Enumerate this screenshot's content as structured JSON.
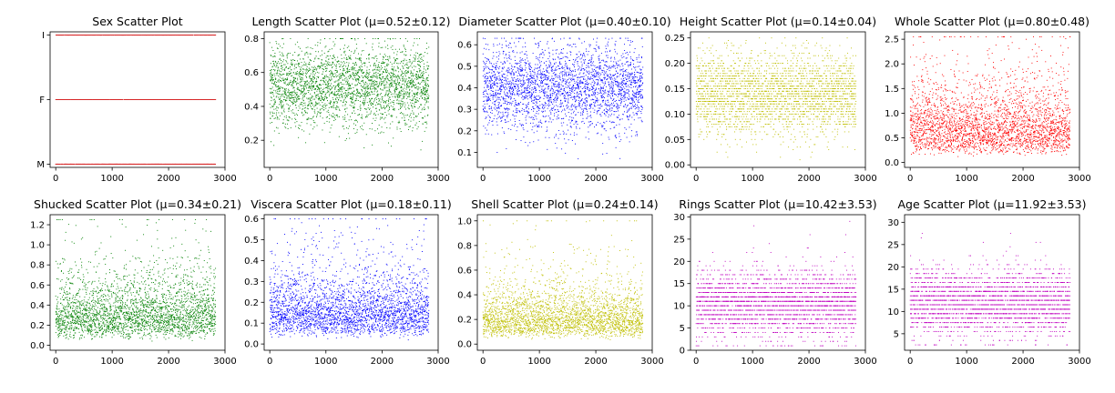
{
  "figure": {
    "background": "#ffffff",
    "point_count": 2835
  },
  "chart_data": [
    {
      "type": "scatter",
      "title": "Sex Scatter Plot",
      "color": "#d62728",
      "xlim": [
        -100,
        3000
      ],
      "xticks": [
        0,
        1000,
        2000,
        3000
      ],
      "ylim": [
        -0.05,
        2.05
      ],
      "yticks": [
        0,
        1,
        2
      ],
      "ytick_labels": [
        "M",
        "F",
        "I"
      ],
      "categorical": true,
      "categories": [
        "M",
        "F",
        "I"
      ]
    },
    {
      "type": "scatter",
      "title": "Length Scatter Plot (μ=0.52±0.12)",
      "color": "#008000",
      "mean": 0.52,
      "std": 0.12,
      "range": [
        0.08,
        0.8
      ],
      "xlim": [
        -100,
        3000
      ],
      "xticks": [
        0,
        1000,
        2000,
        3000
      ],
      "ylim": [
        0.04,
        0.84
      ],
      "yticks": [
        0.2,
        0.4,
        0.6,
        0.8
      ],
      "ytick_labels": [
        "0.2",
        "0.4",
        "0.6",
        "0.8"
      ]
    },
    {
      "type": "scatter",
      "title": "Diameter Scatter Plot (μ=0.40±0.10)",
      "color": "#0000ff",
      "mean": 0.4,
      "std": 0.1,
      "range": [
        0.06,
        0.63
      ],
      "xlim": [
        -100,
        3000
      ],
      "xticks": [
        0,
        1000,
        2000,
        3000
      ],
      "ylim": [
        0.03,
        0.66
      ],
      "yticks": [
        0.1,
        0.2,
        0.3,
        0.4,
        0.5,
        0.6
      ],
      "ytick_labels": [
        "0.1",
        "0.2",
        "0.3",
        "0.4",
        "0.5",
        "0.6"
      ]
    },
    {
      "type": "scatter",
      "title": "Height Scatter Plot (μ=0.14±0.04)",
      "color": "#bfbf00",
      "mean": 0.14,
      "std": 0.04,
      "range": [
        0.0,
        0.25
      ],
      "discrete_step": 0.005,
      "xlim": [
        -100,
        3000
      ],
      "xticks": [
        0,
        1000,
        2000,
        3000
      ],
      "ylim": [
        -0.005,
        0.262
      ],
      "yticks": [
        0.0,
        0.05,
        0.1,
        0.15,
        0.2,
        0.25
      ],
      "ytick_labels": [
        "0.00",
        "0.05",
        "0.10",
        "0.15",
        "0.20",
        "0.25"
      ]
    },
    {
      "type": "scatter",
      "title": "Whole Scatter Plot (μ=0.80±0.48)",
      "color": "#ff0000",
      "mean": 0.8,
      "std": 0.48,
      "range": [
        0.0,
        2.55
      ],
      "xlim": [
        -100,
        3000
      ],
      "xticks": [
        0,
        1000,
        2000,
        3000
      ],
      "ylim": [
        -0.1,
        2.65
      ],
      "yticks": [
        0.0,
        0.5,
        1.0,
        1.5,
        2.0,
        2.5
      ],
      "ytick_labels": [
        "0.0",
        "0.5",
        "1.0",
        "1.5",
        "2.0",
        "2.5"
      ]
    },
    {
      "type": "scatter",
      "title": "Shucked Scatter Plot (μ=0.34±0.21)",
      "color": "#008000",
      "mean": 0.34,
      "std": 0.21,
      "range": [
        0.0,
        1.25
      ],
      "xlim": [
        -100,
        3000
      ],
      "xticks": [
        0,
        1000,
        2000,
        3000
      ],
      "ylim": [
        -0.05,
        1.3
      ],
      "yticks": [
        0.0,
        0.2,
        0.4,
        0.6,
        0.8,
        1.0,
        1.2
      ],
      "ytick_labels": [
        "0.0",
        "0.2",
        "0.4",
        "0.6",
        "0.8",
        "1.0",
        "1.2"
      ]
    },
    {
      "type": "scatter",
      "title": "Viscera Scatter Plot (μ=0.18±0.11)",
      "color": "#0000ff",
      "mean": 0.18,
      "std": 0.11,
      "range": [
        0.0,
        0.6
      ],
      "xlim": [
        -100,
        3000
      ],
      "xticks": [
        0,
        1000,
        2000,
        3000
      ],
      "ylim": [
        -0.03,
        0.62
      ],
      "yticks": [
        0.0,
        0.1,
        0.2,
        0.3,
        0.4,
        0.5,
        0.6
      ],
      "ytick_labels": [
        "0.0",
        "0.1",
        "0.2",
        "0.3",
        "0.4",
        "0.5",
        "0.6"
      ]
    },
    {
      "type": "scatter",
      "title": "Shell Scatter Plot (μ=0.24±0.14)",
      "color": "#bfbf00",
      "mean": 0.24,
      "std": 0.14,
      "range": [
        0.0,
        1.0
      ],
      "xlim": [
        -100,
        3000
      ],
      "xticks": [
        0,
        1000,
        2000,
        3000
      ],
      "ylim": [
        -0.05,
        1.05
      ],
      "yticks": [
        0.0,
        0.2,
        0.4,
        0.6,
        0.8,
        1.0
      ],
      "ytick_labels": [
        "0.0",
        "0.2",
        "0.4",
        "0.6",
        "0.8",
        "1.0"
      ]
    },
    {
      "type": "scatter",
      "title": "Rings Scatter Plot (μ=10.42±3.53)",
      "color": "#bf00bf",
      "mean": 10.42,
      "std": 3.53,
      "range": [
        1,
        29
      ],
      "integer_valued": true,
      "xlim": [
        -100,
        3000
      ],
      "xticks": [
        0,
        1000,
        2000,
        3000
      ],
      "ylim": [
        0,
        30.5
      ],
      "yticks": [
        0,
        5,
        10,
        15,
        20,
        25,
        30
      ],
      "ytick_labels": [
        "0",
        "5",
        "10",
        "15",
        "20",
        "25",
        "30"
      ]
    },
    {
      "type": "scatter",
      "title": "Age Scatter Plot (μ=11.92±3.53)",
      "color": "#bf00bf",
      "mean": 11.92,
      "std": 3.53,
      "range": [
        2.5,
        30.5
      ],
      "integer_offset": 1.5,
      "xlim": [
        -100,
        3000
      ],
      "xticks": [
        0,
        1000,
        2000,
        3000
      ],
      "ylim": [
        1.3,
        31.7
      ],
      "yticks": [
        5,
        10,
        15,
        20,
        25,
        30
      ],
      "ytick_labels": [
        "5",
        "10",
        "15",
        "20",
        "25",
        "30"
      ]
    }
  ]
}
